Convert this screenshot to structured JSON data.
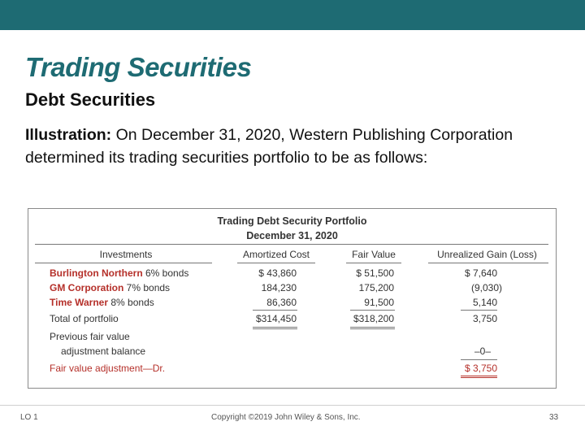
{
  "slide": {
    "title": "Trading Securities",
    "subtitle": "Debt Securities",
    "illustration_label": "Illustration:",
    "illustration_text": " On December 31, 2020, Western Publishing Corporation determined its trading securities portfolio to be as follows:"
  },
  "table": {
    "title": "Trading Debt Security Portfolio",
    "date": "December 31, 2020",
    "headers": [
      "Investments",
      "Amortized Cost",
      "Fair Value",
      "Unrealized Gain (Loss)"
    ],
    "rows": [
      {
        "name": "Burlington Northern",
        "desc": " 6% bonds",
        "cost": "$  43,860",
        "fair": "$  51,500",
        "gain": "$ 7,640"
      },
      {
        "name": "GM Corporation",
        "desc": " 7% bonds",
        "cost": "184,230",
        "fair": "175,200",
        "gain": "(9,030)"
      },
      {
        "name": "Time Warner",
        "desc": " 8% bonds",
        "cost": "86,360",
        "fair": "91,500",
        "gain": "5,140"
      }
    ],
    "total": {
      "label": "Total of portfolio",
      "cost": "$314,450",
      "fair": "$318,200",
      "gain": "3,750"
    },
    "previous": {
      "label1": "Previous fair value",
      "label2": "adjustment balance",
      "gain": "–0–"
    },
    "adjustment": {
      "label": "Fair value adjustment—Dr.",
      "gain": "$ 3,750"
    }
  },
  "footer": {
    "left": "LO 1",
    "center": "Copyright ©2019 John Wiley & Sons, Inc.",
    "page": "33"
  }
}
